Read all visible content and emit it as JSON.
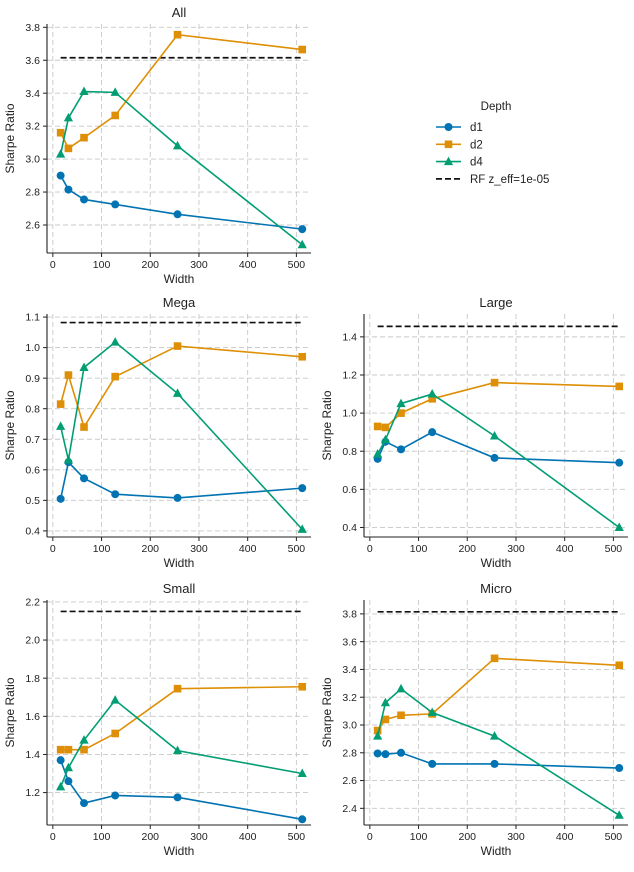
{
  "colors": {
    "d1": "#0173b2",
    "d2": "#de8f05",
    "d4": "#029e73",
    "rf": "#111111"
  },
  "legend": {
    "title": "Depth",
    "entries": [
      {
        "key": "d1",
        "label": "d1",
        "marker": "circle"
      },
      {
        "key": "d2",
        "label": "d2",
        "marker": "square"
      },
      {
        "key": "d4",
        "label": "d4",
        "marker": "triangle"
      },
      {
        "key": "rf",
        "label": "RF z_eff=1e-05",
        "marker": "dashed-line"
      }
    ]
  },
  "chart_data": [
    {
      "type": "line",
      "title": "All",
      "xlabel": "Width",
      "ylabel": "Sharpe Ratio",
      "xlim": [
        -12,
        530
      ],
      "ylim": [
        2.43,
        3.82
      ],
      "xticks": [
        0,
        100,
        200,
        300,
        400,
        500
      ],
      "yticks": [
        2.6,
        2.8,
        3.0,
        3.2,
        3.4,
        3.6,
        3.8
      ],
      "ytick_labels": [
        "2.6",
        "2.8",
        "3.0",
        "3.2",
        "3.4",
        "3.6",
        "3.8"
      ],
      "x": [
        16,
        32,
        64,
        128,
        256,
        512
      ],
      "series": [
        {
          "name": "d1",
          "values": [
            2.9,
            2.815,
            2.755,
            2.725,
            2.665,
            2.575
          ]
        },
        {
          "name": "d2",
          "values": [
            3.16,
            3.065,
            3.13,
            3.265,
            3.755,
            3.665
          ]
        },
        {
          "name": "d4",
          "values": [
            3.03,
            3.25,
            3.41,
            3.405,
            3.08,
            2.48
          ]
        }
      ],
      "reference": {
        "name": "RF z_eff=1e-05",
        "value": 3.615,
        "x_range": [
          16,
          512
        ]
      }
    },
    {
      "type": "line",
      "title": "Mega",
      "xlabel": "Width",
      "ylabel": "Sharpe Ratio",
      "xlim": [
        -12,
        530
      ],
      "ylim": [
        0.38,
        1.11
      ],
      "xticks": [
        0,
        100,
        200,
        300,
        400,
        500
      ],
      "yticks": [
        0.4,
        0.5,
        0.6,
        0.7,
        0.8,
        0.9,
        1.0,
        1.1
      ],
      "ytick_labels": [
        "0.4",
        "0.5",
        "0.6",
        "0.7",
        "0.8",
        "0.9",
        "1.0",
        "1.1"
      ],
      "x": [
        16,
        32,
        64,
        128,
        256,
        512
      ],
      "series": [
        {
          "name": "d1",
          "values": [
            0.505,
            0.625,
            0.572,
            0.52,
            0.508,
            0.54
          ]
        },
        {
          "name": "d2",
          "values": [
            0.815,
            0.91,
            0.74,
            0.905,
            1.005,
            0.97
          ]
        },
        {
          "name": "d4",
          "values": [
            0.742,
            0.632,
            0.935,
            1.018,
            0.85,
            0.405
          ]
        }
      ],
      "reference": {
        "name": "RF z_eff=1e-05",
        "value": 1.082,
        "x_range": [
          16,
          512
        ]
      }
    },
    {
      "type": "line",
      "title": "Large",
      "xlabel": "Width",
      "ylabel": "Sharpe Ratio",
      "xlim": [
        -12,
        530
      ],
      "ylim": [
        0.35,
        1.52
      ],
      "xticks": [
        0,
        100,
        200,
        300,
        400,
        500
      ],
      "yticks": [
        0.4,
        0.6,
        0.8,
        1.0,
        1.2,
        1.4
      ],
      "ytick_labels": [
        "0.4",
        "0.6",
        "0.8",
        "1.0",
        "1.2",
        "1.4"
      ],
      "x": [
        16,
        32,
        64,
        128,
        256,
        512
      ],
      "series": [
        {
          "name": "d1",
          "values": [
            0.76,
            0.85,
            0.81,
            0.9,
            0.765,
            0.74
          ]
        },
        {
          "name": "d2",
          "values": [
            0.93,
            0.925,
            1.0,
            1.075,
            1.16,
            1.14
          ]
        },
        {
          "name": "d4",
          "values": [
            0.785,
            0.86,
            1.05,
            1.1,
            0.88,
            0.4
          ]
        }
      ],
      "reference": {
        "name": "RF z_eff=1e-05",
        "value": 1.455,
        "x_range": [
          16,
          512
        ]
      }
    },
    {
      "type": "line",
      "title": "Small",
      "xlabel": "Width",
      "ylabel": "Sharpe Ratio",
      "xlim": [
        -12,
        530
      ],
      "ylim": [
        1.03,
        2.21
      ],
      "xticks": [
        0,
        100,
        200,
        300,
        400,
        500
      ],
      "yticks": [
        1.2,
        1.4,
        1.6,
        1.8,
        2.0,
        2.2
      ],
      "ytick_labels": [
        "1.2",
        "1.4",
        "1.6",
        "1.8",
        "2.0",
        "2.2"
      ],
      "x": [
        16,
        32,
        64,
        128,
        256,
        512
      ],
      "series": [
        {
          "name": "d1",
          "values": [
            1.37,
            1.26,
            1.145,
            1.185,
            1.175,
            1.06
          ]
        },
        {
          "name": "d2",
          "values": [
            1.425,
            1.425,
            1.425,
            1.51,
            1.745,
            1.755
          ]
        },
        {
          "name": "d4",
          "values": [
            1.23,
            1.33,
            1.475,
            1.685,
            1.42,
            1.3
          ]
        }
      ],
      "reference": {
        "name": "RF z_eff=1e-05",
        "value": 2.15,
        "x_range": [
          16,
          512
        ]
      }
    },
    {
      "type": "line",
      "title": "Micro",
      "xlabel": "Width",
      "ylabel": "Sharpe Ratio",
      "xlim": [
        -12,
        530
      ],
      "ylim": [
        2.28,
        3.9
      ],
      "xticks": [
        0,
        100,
        200,
        300,
        400,
        500
      ],
      "yticks": [
        2.4,
        2.6,
        2.8,
        3.0,
        3.2,
        3.4,
        3.6,
        3.8
      ],
      "ytick_labels": [
        "2.4",
        "2.6",
        "2.8",
        "3.0",
        "3.2",
        "3.4",
        "3.6",
        "3.8"
      ],
      "x": [
        16,
        32,
        64,
        128,
        256,
        512
      ],
      "series": [
        {
          "name": "d1",
          "values": [
            2.795,
            2.79,
            2.8,
            2.72,
            2.72,
            2.69
          ]
        },
        {
          "name": "d2",
          "values": [
            2.96,
            3.04,
            3.07,
            3.08,
            3.48,
            3.43
          ]
        },
        {
          "name": "d4",
          "values": [
            2.92,
            3.16,
            3.26,
            3.09,
            2.92,
            2.35
          ]
        }
      ],
      "reference": {
        "name": "RF z_eff=1e-05",
        "value": 3.815,
        "x_range": [
          16,
          512
        ]
      }
    }
  ]
}
